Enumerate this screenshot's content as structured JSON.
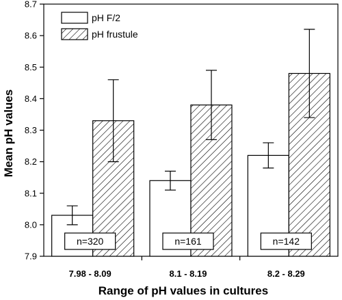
{
  "chart_data": {
    "type": "bar",
    "categories": [
      "7.98 - 8.09",
      "8.1 - 8.19",
      "8.2 - 8.29"
    ],
    "series": [
      {
        "name": "pH F/2",
        "values": [
          8.03,
          8.14,
          8.22
        ],
        "error_low": [
          8.0,
          8.11,
          8.18
        ],
        "error_high": [
          8.06,
          8.17,
          8.26
        ],
        "fill": "#ffffff"
      },
      {
        "name": "pH frustule",
        "values": [
          8.33,
          8.38,
          8.48
        ],
        "error_low": [
          8.2,
          8.27,
          8.34
        ],
        "error_high": [
          8.46,
          8.49,
          8.62
        ],
        "fill": "hatched"
      }
    ],
    "sample_sizes": [
      "n=320",
      "n=161",
      "n=142"
    ],
    "xlabel": "Range of pH values in cultures",
    "ylabel": "Mean pH values",
    "ylim": [
      7.9,
      8.7
    ],
    "yticks": [
      "7.9",
      "8.0",
      "8.1",
      "8.2",
      "8.3",
      "8.4",
      "8.5",
      "8.6",
      "8.7"
    ],
    "grid": false,
    "legend_position": "top-left"
  }
}
